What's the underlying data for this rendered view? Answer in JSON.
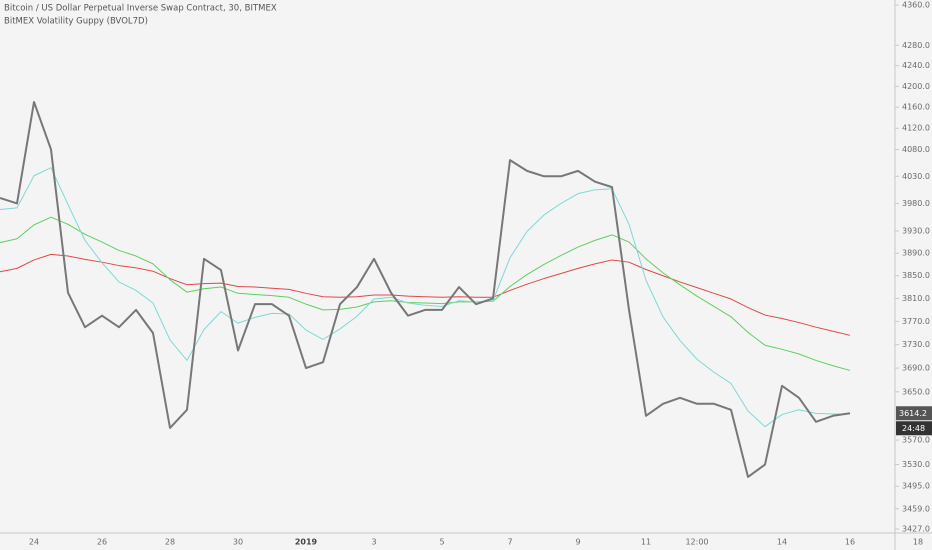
{
  "chart_data": {
    "type": "line",
    "title": "Bitcoin / US Dollar Perpetual Inverse Swap Contract, 30, BITMEX",
    "subtitle": "BitMEX Volatility Guppy (BVOL7D)",
    "log_scale": true,
    "grid": false,
    "categories": [
      null,
      null,
      "24",
      null,
      null,
      null,
      "26",
      null,
      null,
      null,
      "28",
      null,
      null,
      null,
      "30",
      null,
      null,
      null,
      "2019",
      null,
      null,
      null,
      "3",
      null,
      null,
      null,
      "5",
      null,
      null,
      null,
      "7",
      null,
      null,
      null,
      "9",
      null,
      null,
      null,
      "11",
      null,
      null,
      "12:00",
      null,
      null,
      null,
      null,
      "14",
      null,
      null,
      null,
      "16",
      null,
      null,
      null,
      "18"
    ],
    "series": [
      {
        "color": "#e04848",
        "width": 1,
        "values": [
          3857,
          3863,
          3878,
          3888,
          3885,
          3879,
          3874,
          3868,
          3864,
          3858,
          3845,
          3834,
          3836,
          3837,
          3831,
          3830,
          3828,
          3826,
          3819,
          3813,
          3812,
          3813,
          3816,
          3816,
          3814,
          3813,
          3812,
          3813,
          3812,
          3812,
          3824,
          3835,
          3845,
          3854,
          3863,
          3871,
          3878,
          3874,
          3861,
          3850,
          3839,
          3829,
          3819,
          3809,
          3794,
          3781,
          3775,
          3768,
          3760,
          3753,
          3746,
          null,
          null,
          null,
          null
        ]
      },
      {
        "color": "#5fcf5f",
        "width": 1,
        "values": [
          3909,
          3916,
          3941,
          3955,
          3942,
          3924,
          3910,
          3895,
          3885,
          3871,
          3843,
          3821,
          3827,
          3830,
          3819,
          3817,
          3815,
          3812,
          3800,
          3790,
          3791,
          3795,
          3804,
          3806,
          3803,
          3802,
          3801,
          3804,
          3804,
          3805,
          3831,
          3852,
          3870,
          3886,
          3901,
          3913,
          3923,
          3910,
          3880,
          3855,
          3834,
          3814,
          3796,
          3778,
          3751,
          3729,
          3722,
          3714,
          3703,
          3694,
          3686,
          null,
          null,
          null,
          null
        ]
      },
      {
        "color": "#7fd8d8",
        "width": 1,
        "values": [
          3969,
          3972,
          4031,
          4046,
          3978,
          3913,
          3873,
          3839,
          3824,
          3802,
          3738,
          3703,
          3756,
          3787,
          3767,
          3777,
          3784,
          3783,
          3755,
          3739,
          3757,
          3779,
          3809,
          3812,
          3802,
          3798,
          3796,
          3806,
          3804,
          3806,
          3882,
          3929,
          3959,
          3980,
          3998,
          4005,
          4007,
          3942,
          3842,
          3778,
          3737,
          3705,
          3683,
          3664,
          3618,
          3592,
          3612,
          3620,
          3614,
          3613,
          3613,
          null,
          null,
          null,
          null
        ]
      },
      {
        "color": "#777777",
        "width": 2,
        "values": [
          3990,
          3980,
          4170,
          4080,
          3820,
          3760,
          3780,
          3760,
          3790,
          3750,
          3590,
          3620,
          3880,
          3860,
          3720,
          3800,
          3800,
          3780,
          3690,
          3700,
          3800,
          3830,
          3880,
          3820,
          3780,
          3790,
          3790,
          3830,
          3800,
          3810,
          4060,
          4040,
          4030,
          4030,
          4040,
          4020,
          4010,
          3790,
          3610,
          3630,
          3640,
          3630,
          3630,
          3620,
          3510,
          3530,
          3660,
          3640,
          3600,
          3610,
          3614.2,
          null,
          null,
          null,
          null
        ]
      }
    ],
    "ylim": [
      3427,
      4360
    ],
    "yticks": [
      {
        "value": 4360,
        "label": "4360.0"
      },
      {
        "value": 4280,
        "label": "4280.0"
      },
      {
        "value": 4240,
        "label": "4240.0"
      },
      {
        "value": 4200,
        "label": "4200.0"
      },
      {
        "value": 4160,
        "label": "4160.0"
      },
      {
        "value": 4120,
        "label": "4120.0"
      },
      {
        "value": 4080,
        "label": "4080.0"
      },
      {
        "value": 4030,
        "label": "4030.0"
      },
      {
        "value": 3980,
        "label": "3980.0"
      },
      {
        "value": 3930,
        "label": "3930.0"
      },
      {
        "value": 3890,
        "label": "3890.0"
      },
      {
        "value": 3850,
        "label": "3850.0"
      },
      {
        "value": 3810,
        "label": "3810.0"
      },
      {
        "value": 3770,
        "label": "3770.0"
      },
      {
        "value": 3730,
        "label": "3730.0"
      },
      {
        "value": 3690,
        "label": "3690.0"
      },
      {
        "value": 3650,
        "label": "3650.0"
      },
      {
        "value": 3570,
        "label": "3570.0"
      },
      {
        "value": 3530,
        "label": "3530.0"
      },
      {
        "value": 3495,
        "label": "3495.0"
      },
      {
        "value": 3459,
        "label": "3459.0"
      },
      {
        "value": 3427,
        "label": "3427.0"
      }
    ],
    "last_price": 3614.2,
    "last_price_color": "#555555",
    "countdown": "24:48"
  }
}
